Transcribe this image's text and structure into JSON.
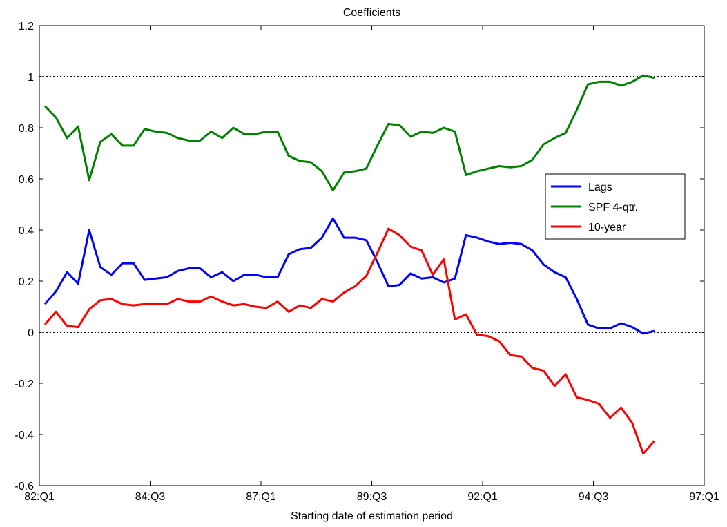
{
  "chart_data": {
    "type": "line",
    "title": "Coefficients",
    "xlabel": "Starting date of estimation period",
    "ylabel": "",
    "xlim": [
      0,
      60
    ],
    "ylim": [
      -0.6,
      1.2
    ],
    "x_ticks": [
      {
        "pos": 0,
        "label": "82:Q1"
      },
      {
        "pos": 10,
        "label": "84:Q3"
      },
      {
        "pos": 20,
        "label": "87:Q1"
      },
      {
        "pos": 30,
        "label": "89:Q3"
      },
      {
        "pos": 40,
        "label": "92:Q1"
      },
      {
        "pos": 50,
        "label": "94:Q3"
      },
      {
        "pos": 60,
        "label": "97:Q1"
      }
    ],
    "y_ticks": [
      -0.6,
      -0.4,
      -0.2,
      0,
      0.2,
      0.4,
      0.6,
      0.8,
      1,
      1.2
    ],
    "y_tick_labels": [
      "-0.6",
      "-0.4",
      "-0.2",
      "0",
      "0.2",
      "0.4",
      "0.6",
      "0.8",
      "1",
      "1.2"
    ],
    "reference_lines": [
      0,
      1
    ],
    "grid": false,
    "legend_position": "right",
    "series": [
      {
        "name": "Lags",
        "color": "#0000ff",
        "values": [
          0.11,
          0.16,
          0.235,
          0.19,
          0.4,
          0.255,
          0.225,
          0.27,
          0.27,
          0.205,
          0.21,
          0.215,
          0.24,
          0.25,
          0.25,
          0.215,
          0.235,
          0.2,
          0.225,
          0.225,
          0.215,
          0.215,
          0.305,
          0.325,
          0.33,
          0.37,
          0.445,
          0.37,
          0.37,
          0.36,
          0.275,
          0.18,
          0.185,
          0.23,
          0.21,
          0.215,
          0.195,
          0.21,
          0.38,
          0.37,
          0.355,
          0.345,
          0.35,
          0.345,
          0.32,
          0.265,
          0.235,
          0.215,
          0.13,
          0.03,
          0.015,
          0.015,
          0.035,
          0.02,
          -0.005,
          0.005
        ]
      },
      {
        "name": "SPF 4-qtr.",
        "color": "#008000",
        "values": [
          0.885,
          0.84,
          0.76,
          0.805,
          0.595,
          0.745,
          0.775,
          0.73,
          0.73,
          0.795,
          0.785,
          0.78,
          0.76,
          0.75,
          0.75,
          0.785,
          0.76,
          0.8,
          0.775,
          0.775,
          0.785,
          0.785,
          0.69,
          0.67,
          0.665,
          0.63,
          0.555,
          0.625,
          0.63,
          0.64,
          0.73,
          0.815,
          0.81,
          0.765,
          0.785,
          0.78,
          0.8,
          0.785,
          0.615,
          0.63,
          0.64,
          0.65,
          0.645,
          0.65,
          0.675,
          0.735,
          0.76,
          0.78,
          0.87,
          0.97,
          0.98,
          0.98,
          0.965,
          0.98,
          1.005,
          0.995
        ]
      },
      {
        "name": "10-year",
        "color": "#ff0000",
        "values": [
          0.03,
          0.08,
          0.025,
          0.02,
          0.09,
          0.125,
          0.13,
          0.11,
          0.105,
          0.11,
          0.11,
          0.11,
          0.13,
          0.12,
          0.12,
          0.14,
          0.12,
          0.105,
          0.11,
          0.1,
          0.095,
          0.12,
          0.08,
          0.105,
          0.095,
          0.13,
          0.12,
          0.155,
          0.18,
          0.22,
          0.31,
          0.405,
          0.38,
          0.335,
          0.32,
          0.225,
          0.285,
          0.05,
          0.07,
          -0.01,
          -0.015,
          -0.035,
          -0.09,
          -0.095,
          -0.14,
          -0.15,
          -0.21,
          -0.165,
          -0.255,
          -0.265,
          -0.28,
          -0.335,
          -0.295,
          -0.355,
          -0.475,
          -0.425
        ]
      }
    ]
  }
}
